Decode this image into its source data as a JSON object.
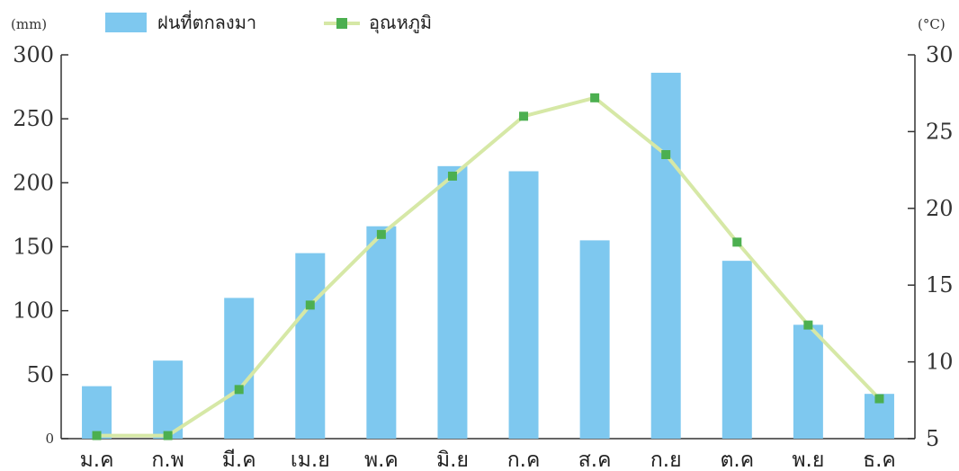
{
  "chart_data": {
    "type": "bar+line",
    "categories": [
      "ม.ค",
      "ก.พ",
      "มี.ค",
      "เม.ย",
      "พ.ค",
      "มิ.ย",
      "ก.ค",
      "ส.ค",
      "ก.ย",
      "ต.ค",
      "พ.ย",
      "ธ.ค"
    ],
    "series": [
      {
        "name": "ฝนที่ตกลงมา",
        "kind": "bar",
        "axis": "left",
        "color": "#7ec8ef",
        "values": [
          41,
          61,
          110,
          145,
          166,
          213,
          209,
          155,
          286,
          139,
          89,
          35
        ]
      },
      {
        "name": "อุณหภูมิ",
        "kind": "line",
        "axis": "right",
        "color": "#d6e8a6",
        "marker_color": "#4caf50",
        "values": [
          5.2,
          5.2,
          8.2,
          13.7,
          18.3,
          22.1,
          26.0,
          27.2,
          23.5,
          17.8,
          12.4,
          7.6
        ]
      }
    ],
    "y_left": {
      "unit": "(mm)",
      "range": [
        0,
        300
      ],
      "ticks": [
        0,
        50,
        100,
        150,
        200,
        250,
        300
      ]
    },
    "y_right": {
      "unit": "(°C)",
      "range": [
        5,
        30
      ],
      "ticks": [
        5,
        10,
        15,
        20,
        25,
        30
      ]
    },
    "legend": "top-left",
    "grid": false
  }
}
